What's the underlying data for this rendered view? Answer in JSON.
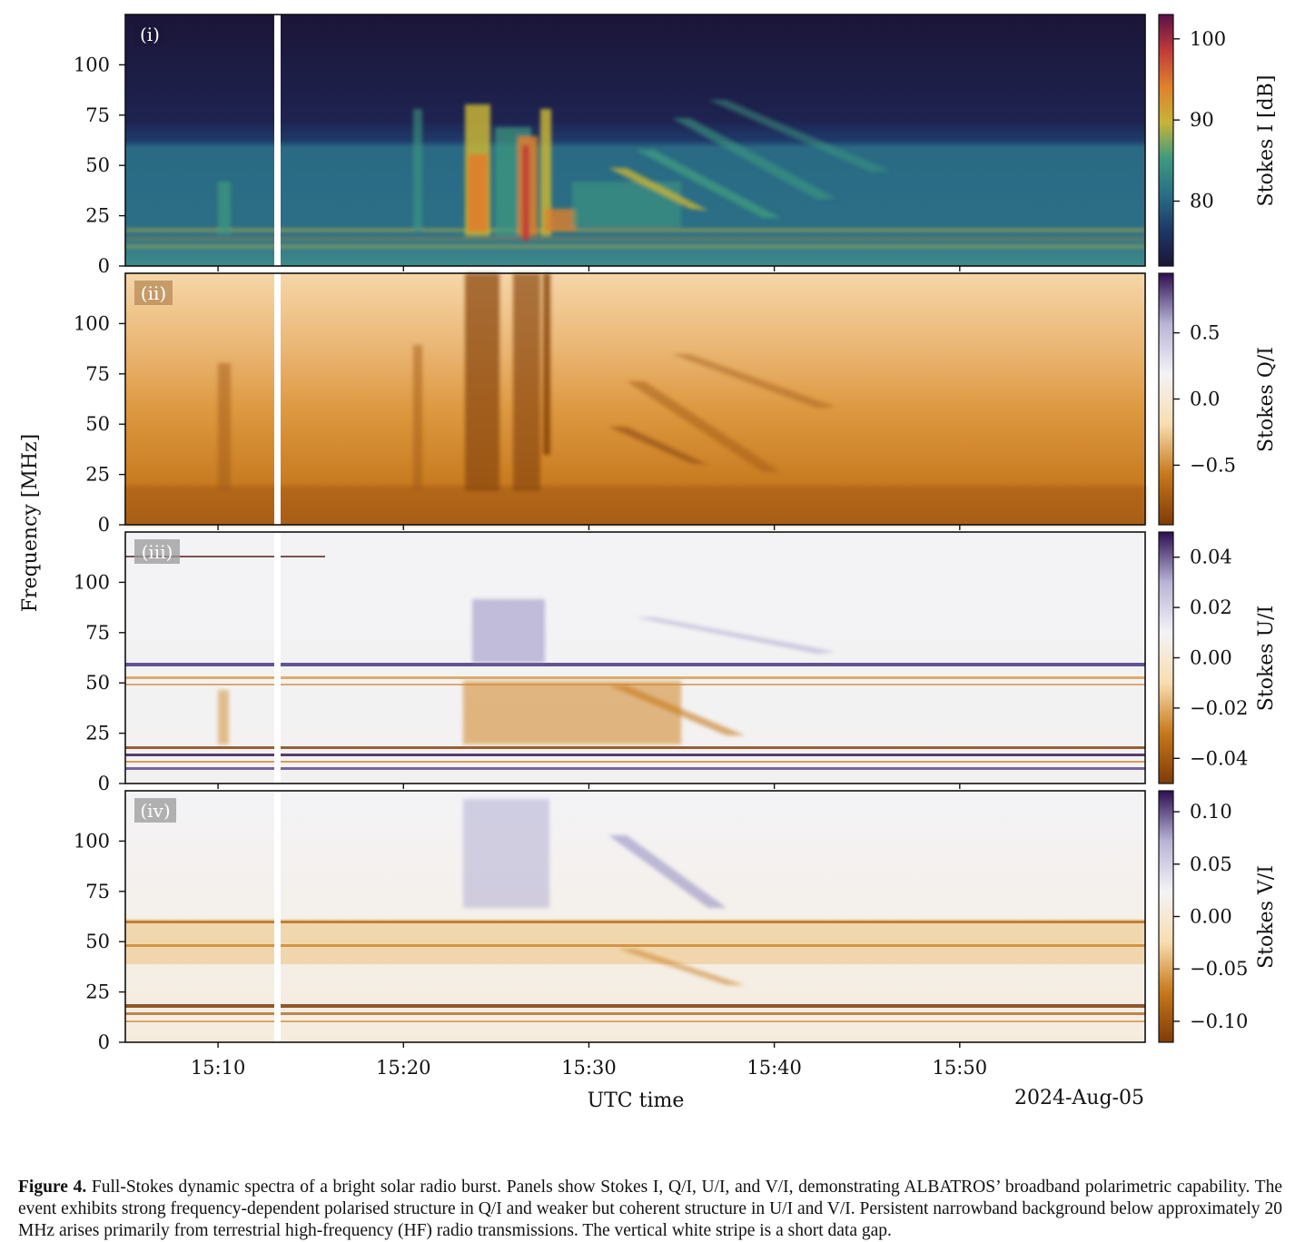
{
  "chart_data": {
    "type": "heatmap",
    "ylabel": "Frequency [MHz]",
    "xlabel": "UTC time",
    "date_label": "2024-Aug-05",
    "x_ticks": [
      "15:10",
      "15:20",
      "15:30",
      "15:40",
      "15:50"
    ],
    "y_ticks": [
      "0",
      "25",
      "50",
      "75",
      "100"
    ],
    "x_range": [
      "15:05",
      "15:60"
    ],
    "y_range": [
      0,
      125
    ],
    "data_gap": {
      "start": "15:12:50",
      "end": "15:13:10"
    },
    "panels": [
      {
        "label": "(i)",
        "colorbar_label": "Stokes I [dB]",
        "colorbar_ticks": [
          "80",
          "90",
          "100"
        ],
        "colorbar_tick_values": [
          80,
          90,
          100
        ],
        "colorbar_range": [
          72,
          103
        ],
        "colormap": [
          "#1b1538",
          "#1e3868",
          "#2a6f86",
          "#3e9a7e",
          "#c8b436",
          "#e0802b",
          "#c23a3a",
          "#5a1048"
        ]
      },
      {
        "label": "(ii)",
        "colorbar_label": "Stokes Q/I",
        "colorbar_ticks": [
          "0.5",
          "0.0",
          "−0.5"
        ],
        "colorbar_tick_values": [
          0.5,
          0.0,
          -0.5
        ],
        "colorbar_range": [
          -0.95,
          0.95
        ],
        "colormap": [
          "#7f3b08",
          "#c7781a",
          "#f8ddb0",
          "#f3f3f6",
          "#b8b4d6",
          "#2d0f52"
        ]
      },
      {
        "label": "(iii)",
        "colorbar_label": "Stokes U/I",
        "colorbar_ticks": [
          "0.04",
          "0.02",
          "0.00",
          "−0.02",
          "−0.04"
        ],
        "colorbar_tick_values": [
          0.04,
          0.02,
          0.0,
          -0.02,
          -0.04
        ],
        "colorbar_range": [
          -0.05,
          0.05
        ],
        "colormap": [
          "#7f3b08",
          "#c7781a",
          "#f8ddb0",
          "#f3f3f6",
          "#b8b4d6",
          "#2d0f52"
        ]
      },
      {
        "label": "(iv)",
        "colorbar_label": "Stokes V/I",
        "colorbar_ticks": [
          "0.10",
          "0.05",
          "0.00",
          "−0.05",
          "−0.10"
        ],
        "colorbar_tick_values": [
          0.1,
          0.05,
          0.0,
          -0.05,
          -0.1
        ],
        "colorbar_range": [
          -0.12,
          0.12
        ],
        "colormap": [
          "#7f3b08",
          "#c7781a",
          "#f8ddb0",
          "#f3f3f6",
          "#b8b4d6",
          "#2d0f52"
        ]
      }
    ]
  },
  "caption": {
    "label": "Figure 4.",
    "text": " Full-Stokes dynamic spectra of a bright solar radio burst. Panels show Stokes I, Q/I, U/I, and V/I, demonstrating ALBATROS’ broadband polarimetric capability. The event exhibits strong frequency-dependent polarised structure in Q/I and weaker but coherent structure in U/I and V/I. Persistent narrowband background below approximately 20 MHz arises primarily from terrestrial high-frequency (HF) radio transmissions. The vertical white stripe is a short data gap."
  }
}
